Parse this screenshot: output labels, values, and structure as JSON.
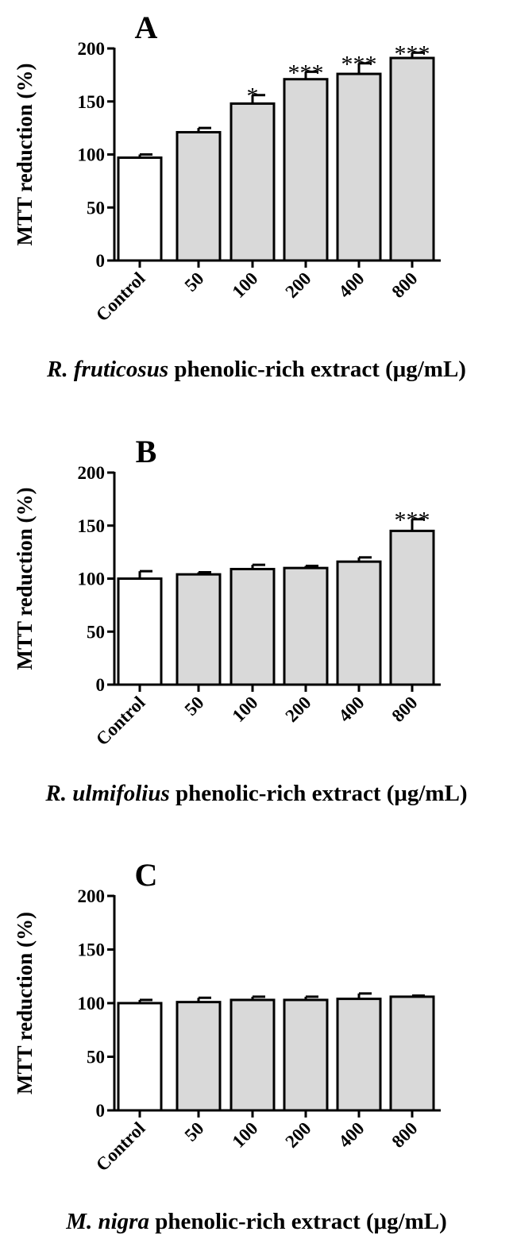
{
  "chart_data": [
    {
      "type": "bar",
      "panel_label": "A",
      "ylabel": "MTT reduction (%)",
      "xlabel_italic": "R. fruticosus",
      "xlabel_rest": " phenolic-rich extract (μg/mL)",
      "categories": [
        "Control",
        "50",
        "100",
        "200",
        "400",
        "800"
      ],
      "values": [
        97,
        121,
        148,
        171,
        176,
        191
      ],
      "errors": [
        3,
        4,
        8,
        7,
        10,
        5
      ],
      "significance": [
        "",
        "",
        "*",
        "***",
        "***",
        "***"
      ],
      "ylim": [
        0,
        200
      ],
      "yticks": [
        "0",
        "50",
        "100",
        "150",
        "200"
      ],
      "colors": {
        "control": "#ffffff",
        "treated": "#d9d9d9",
        "stroke": "#000000"
      }
    },
    {
      "type": "bar",
      "panel_label": "B",
      "ylabel": "MTT reduction (%)",
      "xlabel_italic": "R. ulmifolius",
      "xlabel_rest": " phenolic-rich extract (μg/mL)",
      "categories": [
        "Control",
        "50",
        "100",
        "200",
        "400",
        "800"
      ],
      "values": [
        100,
        104,
        109,
        110,
        116,
        145
      ],
      "errors": [
        7,
        2,
        4,
        2,
        4,
        11
      ],
      "significance": [
        "",
        "",
        "",
        "",
        "",
        "***"
      ],
      "ylim": [
        0,
        200
      ],
      "yticks": [
        "0",
        "50",
        "100",
        "150",
        "200"
      ],
      "colors": {
        "control": "#ffffff",
        "treated": "#d9d9d9",
        "stroke": "#000000"
      }
    },
    {
      "type": "bar",
      "panel_label": "C",
      "ylabel": "MTT reduction (%)",
      "xlabel_italic": "M. nigra",
      "xlabel_rest": " phenolic-rich extract (μg/mL)",
      "categories": [
        "Control",
        "50",
        "100",
        "200",
        "400",
        "800"
      ],
      "values": [
        100,
        101,
        103,
        103,
        104,
        106
      ],
      "errors": [
        3,
        4,
        3,
        3,
        5,
        1
      ],
      "significance": [
        "",
        "",
        "",
        "",
        "",
        ""
      ],
      "ylim": [
        0,
        200
      ],
      "yticks": [
        "0",
        "50",
        "100",
        "150",
        "200"
      ],
      "colors": {
        "control": "#ffffff",
        "treated": "#d9d9d9",
        "stroke": "#000000"
      }
    }
  ]
}
